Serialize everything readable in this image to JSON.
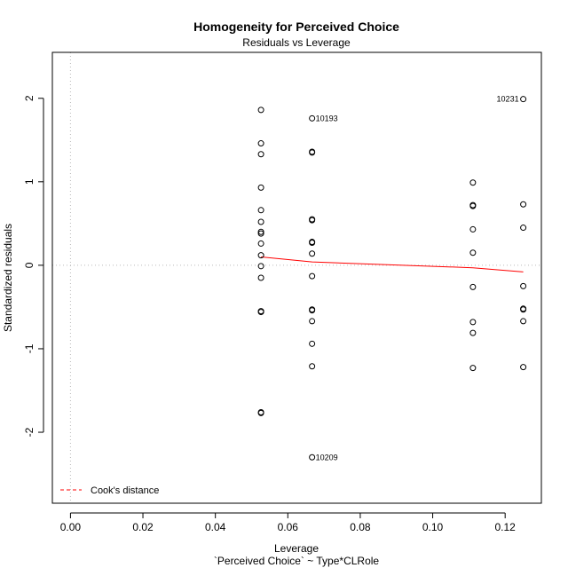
{
  "chart_data": {
    "type": "scatter",
    "title": "Homogeneity for Perceived Choice",
    "subtitle": "Residuals vs Leverage",
    "xlabel": "Leverage",
    "xlabel2": "`Perceived Choice` ~ Type*CLRole",
    "ylabel": "Standardized residuals",
    "xlim": [
      -0.005,
      0.13
    ],
    "ylim": [
      -2.85,
      2.55
    ],
    "x_ticks": [
      0.0,
      0.02,
      0.04,
      0.06,
      0.08,
      0.1,
      0.12
    ],
    "x_tick_labels": [
      "0.00",
      "0.02",
      "0.04",
      "0.06",
      "0.08",
      "0.10",
      "0.12"
    ],
    "y_ticks": [
      -2,
      -1,
      0,
      1,
      2
    ],
    "y_tick_labels": [
      "-2",
      "-1",
      "0",
      "1",
      "2"
    ],
    "reference_lines": {
      "x": 0,
      "y": 0
    },
    "colors": {
      "points": "#000000",
      "smooth": "#ff0000",
      "reference": "#bbbbbb",
      "cooks": "#ff0000"
    },
    "points": [
      {
        "x": 0.0526,
        "y": 1.86
      },
      {
        "x": 0.0526,
        "y": 1.46
      },
      {
        "x": 0.0526,
        "y": 1.33
      },
      {
        "x": 0.0526,
        "y": 0.93
      },
      {
        "x": 0.0526,
        "y": 0.66
      },
      {
        "x": 0.0526,
        "y": 0.52
      },
      {
        "x": 0.0526,
        "y": 0.4
      },
      {
        "x": 0.0526,
        "y": 0.38
      },
      {
        "x": 0.0526,
        "y": 0.26
      },
      {
        "x": 0.0526,
        "y": 0.12
      },
      {
        "x": 0.0526,
        "y": -0.01
      },
      {
        "x": 0.0526,
        "y": -0.15
      },
      {
        "x": 0.0526,
        "y": -0.55
      },
      {
        "x": 0.0526,
        "y": -0.56
      },
      {
        "x": 0.0526,
        "y": -1.76
      },
      {
        "x": 0.0526,
        "y": -1.77
      },
      {
        "x": 0.0667,
        "y": 1.76,
        "label": "10193"
      },
      {
        "x": 0.0667,
        "y": 1.36
      },
      {
        "x": 0.0667,
        "y": 1.35
      },
      {
        "x": 0.0667,
        "y": 0.55
      },
      {
        "x": 0.0667,
        "y": 0.54
      },
      {
        "x": 0.0667,
        "y": 0.28
      },
      {
        "x": 0.0667,
        "y": 0.27
      },
      {
        "x": 0.0667,
        "y": 0.14
      },
      {
        "x": 0.0667,
        "y": -0.13
      },
      {
        "x": 0.0667,
        "y": -0.53
      },
      {
        "x": 0.0667,
        "y": -0.54
      },
      {
        "x": 0.0667,
        "y": -0.67
      },
      {
        "x": 0.0667,
        "y": -0.94
      },
      {
        "x": 0.0667,
        "y": -1.21
      },
      {
        "x": 0.0667,
        "y": -2.3,
        "label": "10209"
      },
      {
        "x": 0.1111,
        "y": 0.99
      },
      {
        "x": 0.1111,
        "y": 0.72
      },
      {
        "x": 0.1111,
        "y": 0.71
      },
      {
        "x": 0.1111,
        "y": 0.43
      },
      {
        "x": 0.1111,
        "y": 0.15
      },
      {
        "x": 0.1111,
        "y": -0.26
      },
      {
        "x": 0.1111,
        "y": -0.68
      },
      {
        "x": 0.1111,
        "y": -0.81
      },
      {
        "x": 0.1111,
        "y": -1.23
      },
      {
        "x": 0.125,
        "y": 1.99,
        "label": "10231"
      },
      {
        "x": 0.125,
        "y": 0.73
      },
      {
        "x": 0.125,
        "y": 0.45
      },
      {
        "x": 0.125,
        "y": -0.25
      },
      {
        "x": 0.125,
        "y": -0.52
      },
      {
        "x": 0.125,
        "y": -0.53
      },
      {
        "x": 0.125,
        "y": -0.67
      },
      {
        "x": 0.125,
        "y": -1.22
      }
    ],
    "smooth_line": [
      {
        "x": 0.0526,
        "y": 0.1
      },
      {
        "x": 0.0667,
        "y": 0.04
      },
      {
        "x": 0.1111,
        "y": -0.03
      },
      {
        "x": 0.125,
        "y": -0.08
      }
    ],
    "legend": {
      "placement": "bottom-left",
      "label": "Cook's distance"
    }
  }
}
